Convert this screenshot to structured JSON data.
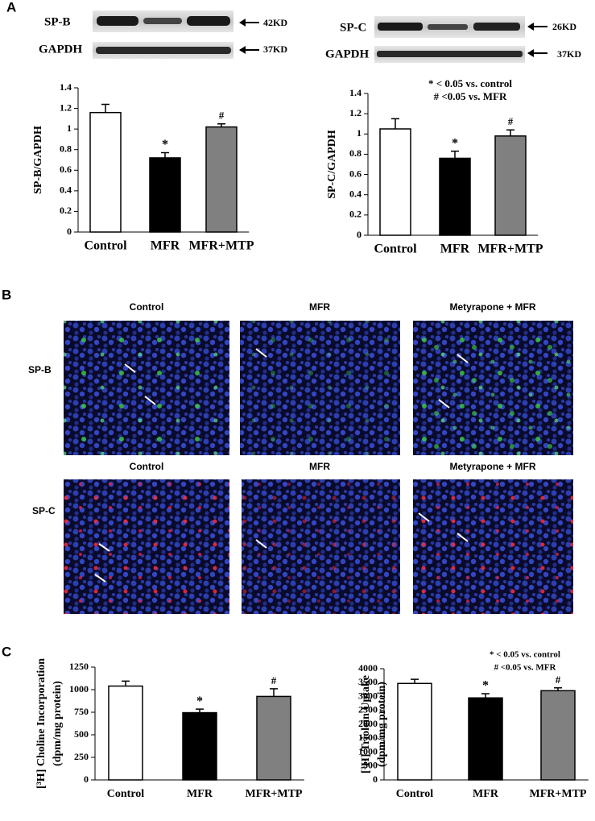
{
  "panel_labels": [
    "A",
    "B",
    "C"
  ],
  "blots": [
    {
      "rows": [
        {
          "label": "SP-B",
          "size": "42KD"
        },
        {
          "label": "GAPDH",
          "size": "37KD"
        }
      ]
    },
    {
      "rows": [
        {
          "label": "SP-C",
          "size": "26KD"
        },
        {
          "label": "GAPDH",
          "size": "37KD"
        }
      ]
    }
  ],
  "images": {
    "rows": [
      {
        "label": "SP-B",
        "columns": [
          "Control",
          "MFR",
          "Metyrapone + MFR"
        ]
      },
      {
        "label": "SP-C",
        "columns": [
          "Control",
          "MFR",
          "Metyrapone + MFR"
        ]
      }
    ]
  },
  "chart_data": [
    {
      "type": "bar",
      "ylabel": [
        "SP-B/GAPDH"
      ],
      "categories": [
        "Control",
        "MFR",
        "MFR+MTP"
      ],
      "values": [
        1.16,
        0.72,
        1.02
      ],
      "errors": [
        0.08,
        0.05,
        0.03
      ],
      "markers": [
        null,
        "*",
        "#"
      ],
      "colors": [
        "#ffffff",
        "#000000",
        "#808080"
      ],
      "ylim": [
        0,
        1.4
      ],
      "yticks": [
        0,
        0.2,
        0.4,
        0.6,
        0.8,
        1,
        1.2,
        1.4
      ]
    },
    {
      "type": "bar",
      "ylabel": [
        "SP-C/GAPDH"
      ],
      "categories": [
        "Control",
        "MFR",
        "MFR+MTP"
      ],
      "values": [
        1.05,
        0.76,
        0.98
      ],
      "errors": [
        0.1,
        0.07,
        0.06
      ],
      "markers": [
        null,
        "*",
        "#"
      ],
      "colors": [
        "#ffffff",
        "#000000",
        "#808080"
      ],
      "notes": [
        "* < 0.05 vs. control",
        "# <0.05 vs. MFR"
      ],
      "ylim": [
        0,
        1.4
      ],
      "yticks": [
        0,
        0.2,
        0.4,
        0.6,
        0.8,
        1,
        1.2,
        1.4
      ]
    },
    {
      "type": "bar",
      "ylabel": [
        "[³H] Choline Incorporation",
        "(dpm/mg protein)"
      ],
      "categories": [
        "Control",
        "MFR",
        "MFR+MTP"
      ],
      "values": [
        1040,
        745,
        925
      ],
      "errors": [
        55,
        40,
        85
      ],
      "markers": [
        null,
        "*",
        "#"
      ],
      "colors": [
        "#ffffff",
        "#000000",
        "#808080"
      ],
      "ylim": [
        0,
        1250
      ],
      "yticks": [
        0,
        250,
        500,
        750,
        1000,
        1250
      ]
    },
    {
      "type": "bar",
      "ylabel": [
        "[³H] Triolein Uptake",
        "(dpm/mg protein)"
      ],
      "categories": [
        "Control",
        "MFR",
        "MFR+MTP"
      ],
      "values": [
        3470,
        2950,
        3210
      ],
      "errors": [
        150,
        150,
        100
      ],
      "markers": [
        null,
        "*",
        "#"
      ],
      "colors": [
        "#ffffff",
        "#000000",
        "#808080"
      ],
      "notes": [
        "* < 0.05 vs. control",
        "# <0.05 vs. MFR"
      ],
      "ylim": [
        0,
        4000
      ],
      "yticks": [
        0,
        500,
        1000,
        1500,
        2000,
        2500,
        3000,
        3500,
        4000
      ]
    }
  ]
}
